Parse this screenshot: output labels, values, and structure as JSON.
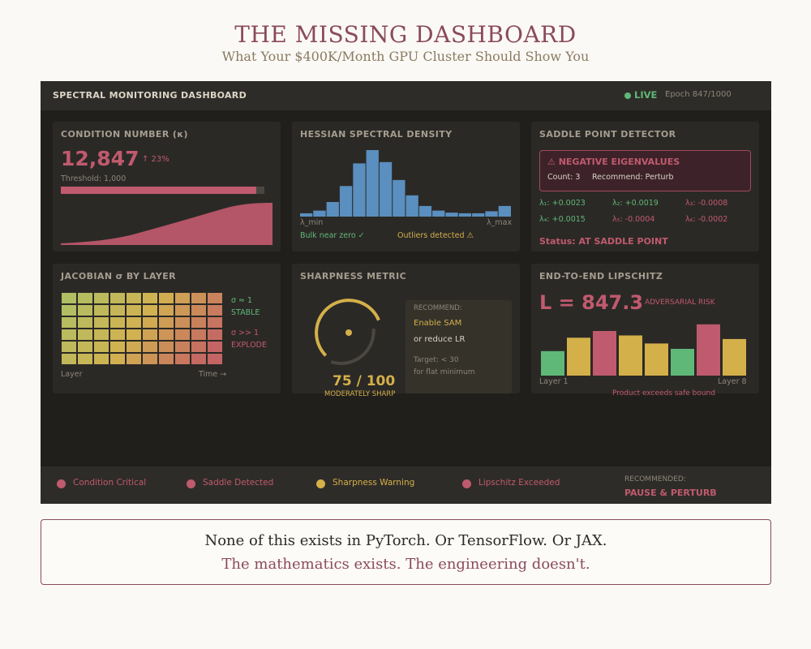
{
  "header": {
    "title": "THE MISSING DASHBOARD",
    "subtitle": "What Your $400K/Month GPU Cluster Should Show You"
  },
  "dashboard": {
    "title": "SPECTRAL MONITORING DASHBOARD",
    "live_label": "LIVE",
    "epoch": "Epoch 847/1000"
  },
  "condition": {
    "title": "CONDITION NUMBER (κ)",
    "value": "12,847",
    "change": "↑ 23%",
    "threshold": "Threshold: 1,000",
    "fill_fraction": 0.96
  },
  "hessian": {
    "title": "HESSIAN SPECTRAL DENSITY",
    "lambda_min": "λ_min",
    "lambda_max": "λ_max",
    "bulk_note": "Bulk near zero ✓",
    "outlier_note": "Outliers detected ⚠",
    "histogram": [
      0.05,
      0.09,
      0.22,
      0.46,
      0.8,
      1.0,
      0.82,
      0.55,
      0.32,
      0.16,
      0.09,
      0.06,
      0.05,
      0.05,
      0.08,
      0.16
    ]
  },
  "saddle": {
    "title": "SADDLE POINT DETECTOR",
    "alert_title": "⚠ NEGATIVE EIGENVALUES",
    "count": "Count: 3",
    "recommend": "Recommend: Perturb",
    "eigenvalues": [
      {
        "label": "λ₁: +0.0023",
        "status": "positive"
      },
      {
        "label": "λ₂: +0.0019",
        "status": "positive"
      },
      {
        "label": "λ₃: -0.0008",
        "status": "negative"
      },
      {
        "label": "λ₄: +0.0015",
        "status": "positive"
      },
      {
        "label": "λ₅: -0.0004",
        "status": "negative"
      },
      {
        "label": "λ₆: -0.0002",
        "status": "negative"
      }
    ],
    "status": "Status: AT SADDLE POINT"
  },
  "jacobian": {
    "title": "JACOBIAN σ BY LAYER",
    "stable_sym": "σ ≈ 1",
    "stable_label": "STABLE",
    "explode_sym": "σ >> 1",
    "explode_label": "EXPLODE",
    "x_left": "Layer",
    "x_right": "Time →"
  },
  "sharpness": {
    "title": "SHARPNESS METRIC",
    "score": "75 / 100",
    "score_value": 75,
    "label": "MODERATELY SHARP",
    "recommend_label": "RECOMMEND:",
    "action1": "Enable SAM",
    "action2": "or reduce LR",
    "target1": "Target: < 30",
    "target2": "for flat minimum"
  },
  "lipschitz": {
    "title": "END-TO-END LIPSCHITZ",
    "value": "L = 847.3",
    "risk": "ADVERSARIAL RISK",
    "layer_first": "Layer 1",
    "layer_last": "Layer 8",
    "note": "Product exceeds safe bound",
    "bars": [
      {
        "value": 0.55,
        "status": "ok"
      },
      {
        "value": 0.85,
        "status": "warn"
      },
      {
        "value": 1.0,
        "status": "bad"
      },
      {
        "value": 0.9,
        "status": "warn"
      },
      {
        "value": 0.72,
        "status": "warn"
      },
      {
        "value": 0.6,
        "status": "ok"
      },
      {
        "value": 1.15,
        "status": "bad"
      },
      {
        "value": 0.82,
        "status": "warn"
      }
    ]
  },
  "footer": {
    "items": [
      {
        "label": "Condition Critical",
        "color": "#c05a6e"
      },
      {
        "label": "Saddle Detected",
        "color": "#c05a6e"
      },
      {
        "label": "Sharpness Warning",
        "color": "#d4b04a"
      },
      {
        "label": "Lipschitz Exceeded",
        "color": "#c05a6e"
      }
    ],
    "recommended_label": "RECOMMENDED:",
    "recommended_action": "PAUSE & PERTURB"
  },
  "bottom": {
    "line1": "None of this exists in PyTorch. Or TensorFlow. Or JAX.",
    "line2": "The mathematics exists. The engineering doesn't."
  },
  "colors": {
    "pink": "#c05a6e",
    "green": "#5fb878",
    "gold": "#d4b04a",
    "blue": "#5a8fbf"
  }
}
